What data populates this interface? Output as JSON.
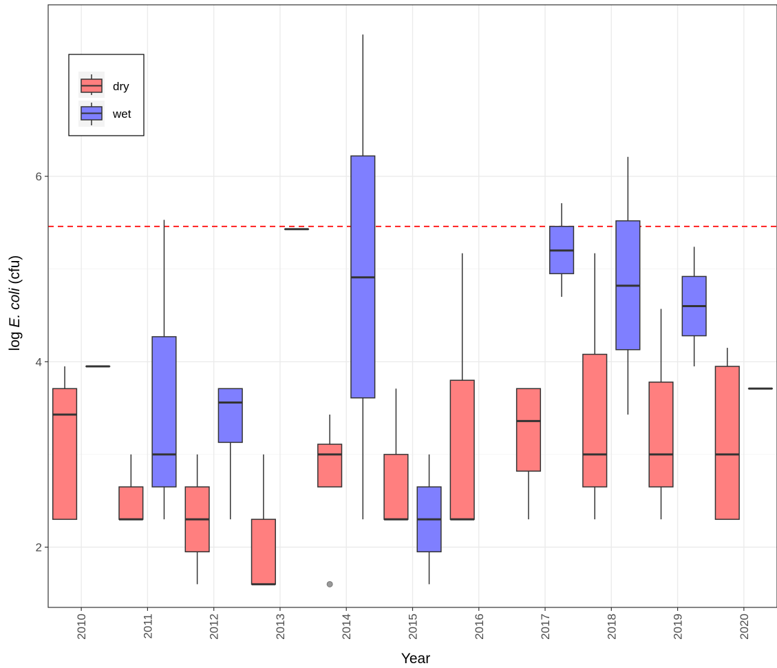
{
  "chart_data": {
    "type": "boxplot",
    "xlabel": "Year",
    "ylabel_prefix": "log ",
    "ylabel_italic": "E. coli",
    "ylabel_suffix": " (cfu)",
    "categories": [
      "2010",
      "2011",
      "2012",
      "2013",
      "2014",
      "2015",
      "2016",
      "2017",
      "2018",
      "2019",
      "2020"
    ],
    "y_ticks": [
      2,
      4,
      6
    ],
    "ylim": [
      1.35,
      7.85
    ],
    "reference_line": {
      "y": 5.46,
      "color": "#ff0000",
      "style": "dashed"
    },
    "legend": {
      "position": "top-left"
    },
    "series": [
      {
        "name": "dry",
        "color": "#ff7f7f",
        "boxes": [
          {
            "x": "2010",
            "lower": 2.3,
            "q1": 2.3,
            "median": 3.43,
            "q3": 3.71,
            "upper": 3.95
          },
          {
            "x": "2011",
            "lower": 2.3,
            "q1": 2.3,
            "median": 2.3,
            "q3": 2.65,
            "upper": 3.0
          },
          {
            "x": "2012",
            "lower": 1.6,
            "q1": 1.95,
            "median": 2.3,
            "q3": 2.65,
            "upper": 3.0
          },
          {
            "x": "2013",
            "lower": 1.6,
            "q1": 1.6,
            "median": 1.6,
            "q3": 2.3,
            "upper": 3.0
          },
          {
            "x": "2014",
            "lower": 2.65,
            "q1": 2.65,
            "median": 3.0,
            "q3": 3.11,
            "upper": 3.43,
            "outliers": [
              1.6
            ]
          },
          {
            "x": "2015",
            "lower": 2.3,
            "q1": 2.3,
            "median": 2.3,
            "q3": 3.0,
            "upper": 3.71
          },
          {
            "x": "2016",
            "lower": 2.3,
            "q1": 2.3,
            "median": 2.3,
            "q3": 3.8,
            "upper": 5.17
          },
          {
            "x": "2017",
            "lower": 2.3,
            "q1": 2.82,
            "median": 3.36,
            "q3": 3.71,
            "upper": 3.71
          },
          {
            "x": "2018",
            "lower": 2.3,
            "q1": 2.65,
            "median": 3.0,
            "q3": 4.08,
            "upper": 5.17
          },
          {
            "x": "2019",
            "lower": 2.3,
            "q1": 2.65,
            "median": 3.0,
            "q3": 3.78,
            "upper": 4.57
          },
          {
            "x": "2020",
            "lower": 2.3,
            "q1": 2.3,
            "median": 3.0,
            "q3": 3.95,
            "upper": 4.15
          }
        ]
      },
      {
        "name": "wet",
        "color": "#7f7fff",
        "boxes": [
          {
            "x": "2010",
            "lower": 3.95,
            "q1": 3.95,
            "median": 3.95,
            "q3": 3.95,
            "upper": 3.95
          },
          {
            "x": "2011",
            "lower": 2.3,
            "q1": 2.65,
            "median": 3.0,
            "q3": 4.27,
            "upper": 5.53
          },
          {
            "x": "2012",
            "lower": 2.3,
            "q1": 3.13,
            "median": 3.56,
            "q3": 3.71,
            "upper": 3.71
          },
          {
            "x": "2013",
            "lower": 5.43,
            "q1": 5.43,
            "median": 5.43,
            "q3": 5.43,
            "upper": 5.43
          },
          {
            "x": "2014",
            "lower": 2.3,
            "q1": 3.61,
            "median": 4.91,
            "q3": 6.22,
            "upper": 7.53
          },
          {
            "x": "2015",
            "lower": 1.6,
            "q1": 1.95,
            "median": 2.3,
            "q3": 2.65,
            "upper": 3.0
          },
          {
            "x": "2017",
            "lower": 4.7,
            "q1": 4.95,
            "median": 5.2,
            "q3": 5.46,
            "upper": 5.71
          },
          {
            "x": "2018",
            "lower": 3.43,
            "q1": 4.13,
            "median": 4.82,
            "q3": 5.52,
            "upper": 6.21
          },
          {
            "x": "2019",
            "lower": 3.95,
            "q1": 4.28,
            "median": 4.6,
            "q3": 4.92,
            "upper": 5.24
          },
          {
            "x": "2020",
            "lower": 3.71,
            "q1": 3.71,
            "median": 3.71,
            "q3": 3.71,
            "upper": 3.71
          }
        ]
      }
    ]
  }
}
